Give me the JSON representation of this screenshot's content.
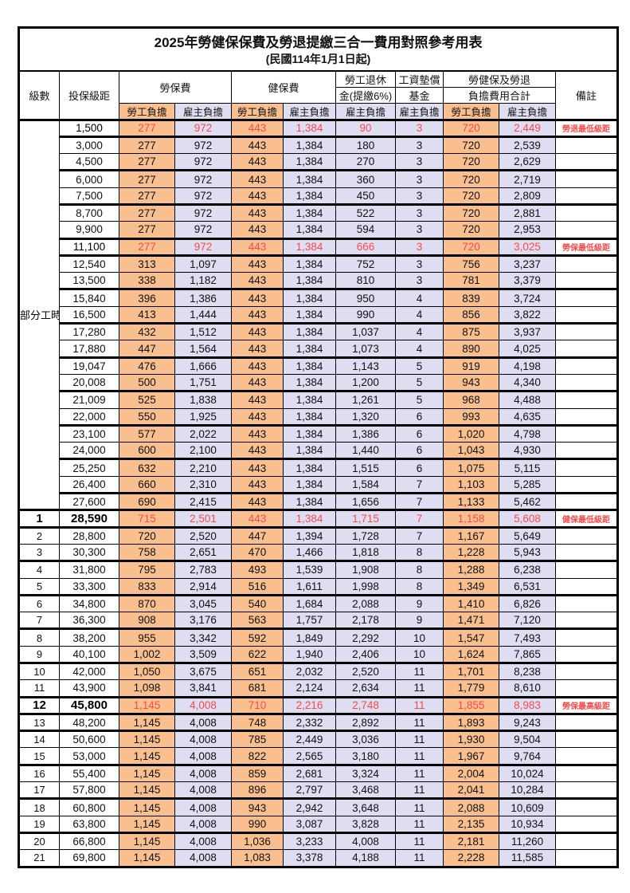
{
  "title": "2025年勞健保保費及勞退提繳三合一費用對照參考用表",
  "subtitle": "(民國114年1月1日起)",
  "header": {
    "level": "級數",
    "bracket": "投保級距",
    "labor": "勞保費",
    "health": "健保費",
    "pension_l1": "勞工退休",
    "pension_l2": "金(提繳6%)",
    "fund_l1": "工資墊償",
    "fund_l2": "基金",
    "total_l1": "勞健保及勞退",
    "total_l2": "負擔費用合計",
    "remark": "備註",
    "employee": "勞工負擔",
    "employer": "雇主負擔"
  },
  "part_time_label": "部分工時",
  "colors": {
    "employee_bg": "#FABF8F",
    "employer_bg": "#DEDDF2",
    "highlight_text": "#F94B4B"
  },
  "rows": [
    {
      "level": "",
      "bracket": "1,500",
      "values": [
        "277",
        "972",
        "443",
        "1,384",
        "90",
        "3",
        "720",
        "2,449"
      ],
      "remark": "勞退最低級距",
      "highlight": true
    },
    {
      "level": "",
      "bracket": "3,000",
      "values": [
        "277",
        "972",
        "443",
        "1,384",
        "180",
        "3",
        "720",
        "2,539"
      ],
      "remark": "",
      "highlight": false
    },
    {
      "level": "",
      "bracket": "4,500",
      "values": [
        "277",
        "972",
        "443",
        "1,384",
        "270",
        "3",
        "720",
        "2,629"
      ],
      "remark": "",
      "highlight": false
    },
    {
      "level": "",
      "bracket": "6,000",
      "values": [
        "277",
        "972",
        "443",
        "1,384",
        "360",
        "3",
        "720",
        "2,719"
      ],
      "remark": "",
      "highlight": false
    },
    {
      "level": "",
      "bracket": "7,500",
      "values": [
        "277",
        "972",
        "443",
        "1,384",
        "450",
        "3",
        "720",
        "2,809"
      ],
      "remark": "",
      "highlight": false
    },
    {
      "level": "",
      "bracket": "8,700",
      "values": [
        "277",
        "972",
        "443",
        "1,384",
        "522",
        "3",
        "720",
        "2,881"
      ],
      "remark": "",
      "highlight": false
    },
    {
      "level": "",
      "bracket": "9,900",
      "values": [
        "277",
        "972",
        "443",
        "1,384",
        "594",
        "3",
        "720",
        "2,953"
      ],
      "remark": "",
      "highlight": false
    },
    {
      "level": "",
      "bracket": "11,100",
      "values": [
        "277",
        "972",
        "443",
        "1,384",
        "666",
        "3",
        "720",
        "3,025"
      ],
      "remark": "勞保最低級距",
      "highlight": true
    },
    {
      "level": "",
      "bracket": "12,540",
      "values": [
        "313",
        "1,097",
        "443",
        "1,384",
        "752",
        "3",
        "756",
        "3,237"
      ],
      "remark": "",
      "highlight": false
    },
    {
      "level": "",
      "bracket": "13,500",
      "values": [
        "338",
        "1,182",
        "443",
        "1,384",
        "810",
        "3",
        "781",
        "3,379"
      ],
      "remark": "",
      "highlight": false
    },
    {
      "level": "",
      "bracket": "15,840",
      "values": [
        "396",
        "1,386",
        "443",
        "1,384",
        "950",
        "4",
        "839",
        "3,724"
      ],
      "remark": "",
      "highlight": false
    },
    {
      "level": "",
      "bracket": "16,500",
      "values": [
        "413",
        "1,444",
        "443",
        "1,384",
        "990",
        "4",
        "856",
        "3,822"
      ],
      "remark": "",
      "highlight": false
    },
    {
      "level": "",
      "bracket": "17,280",
      "values": [
        "432",
        "1,512",
        "443",
        "1,384",
        "1,037",
        "4",
        "875",
        "3,937"
      ],
      "remark": "",
      "highlight": false
    },
    {
      "level": "",
      "bracket": "17,880",
      "values": [
        "447",
        "1,564",
        "443",
        "1,384",
        "1,073",
        "4",
        "890",
        "4,025"
      ],
      "remark": "",
      "highlight": false
    },
    {
      "level": "",
      "bracket": "19,047",
      "values": [
        "476",
        "1,666",
        "443",
        "1,384",
        "1,143",
        "5",
        "919",
        "4,198"
      ],
      "remark": "",
      "highlight": false
    },
    {
      "level": "",
      "bracket": "20,008",
      "values": [
        "500",
        "1,751",
        "443",
        "1,384",
        "1,200",
        "5",
        "943",
        "4,340"
      ],
      "remark": "",
      "highlight": false
    },
    {
      "level": "",
      "bracket": "21,009",
      "values": [
        "525",
        "1,838",
        "443",
        "1,384",
        "1,261",
        "5",
        "968",
        "4,488"
      ],
      "remark": "",
      "highlight": false
    },
    {
      "level": "",
      "bracket": "22,000",
      "values": [
        "550",
        "1,925",
        "443",
        "1,384",
        "1,320",
        "6",
        "993",
        "4,635"
      ],
      "remark": "",
      "highlight": false
    },
    {
      "level": "",
      "bracket": "23,100",
      "values": [
        "577",
        "2,022",
        "443",
        "1,384",
        "1,386",
        "6",
        "1,020",
        "4,798"
      ],
      "remark": "",
      "highlight": false
    },
    {
      "level": "",
      "bracket": "24,000",
      "values": [
        "600",
        "2,100",
        "443",
        "1,384",
        "1,440",
        "6",
        "1,043",
        "4,930"
      ],
      "remark": "",
      "highlight": false
    },
    {
      "level": "",
      "bracket": "25,250",
      "values": [
        "632",
        "2,210",
        "443",
        "1,384",
        "1,515",
        "6",
        "1,075",
        "5,115"
      ],
      "remark": "",
      "highlight": false
    },
    {
      "level": "",
      "bracket": "26,400",
      "values": [
        "660",
        "2,310",
        "443",
        "1,384",
        "1,584",
        "7",
        "1,103",
        "5,285"
      ],
      "remark": "",
      "highlight": false
    },
    {
      "level": "",
      "bracket": "27,600",
      "values": [
        "690",
        "2,415",
        "443",
        "1,384",
        "1,656",
        "7",
        "1,133",
        "5,462"
      ],
      "remark": "",
      "highlight": false
    },
    {
      "level": "1",
      "bracket": "28,590",
      "values": [
        "715",
        "2,501",
        "443",
        "1,384",
        "1,715",
        "7",
        "1,158",
        "5,608"
      ],
      "remark": "健保最低級距",
      "highlight": true
    },
    {
      "level": "2",
      "bracket": "28,800",
      "values": [
        "720",
        "2,520",
        "447",
        "1,394",
        "1,728",
        "7",
        "1,167",
        "5,649"
      ],
      "remark": "",
      "highlight": false
    },
    {
      "level": "3",
      "bracket": "30,300",
      "values": [
        "758",
        "2,651",
        "470",
        "1,466",
        "1,818",
        "8",
        "1,228",
        "5,943"
      ],
      "remark": "",
      "highlight": false
    },
    {
      "level": "4",
      "bracket": "31,800",
      "values": [
        "795",
        "2,783",
        "493",
        "1,539",
        "1,908",
        "8",
        "1,288",
        "6,238"
      ],
      "remark": "",
      "highlight": false
    },
    {
      "level": "5",
      "bracket": "33,300",
      "values": [
        "833",
        "2,914",
        "516",
        "1,611",
        "1,998",
        "8",
        "1,349",
        "6,531"
      ],
      "remark": "",
      "highlight": false
    },
    {
      "level": "6",
      "bracket": "34,800",
      "values": [
        "870",
        "3,045",
        "540",
        "1,684",
        "2,088",
        "9",
        "1,410",
        "6,826"
      ],
      "remark": "",
      "highlight": false
    },
    {
      "level": "7",
      "bracket": "36,300",
      "values": [
        "908",
        "3,176",
        "563",
        "1,757",
        "2,178",
        "9",
        "1,471",
        "7,120"
      ],
      "remark": "",
      "highlight": false
    },
    {
      "level": "8",
      "bracket": "38,200",
      "values": [
        "955",
        "3,342",
        "592",
        "1,849",
        "2,292",
        "10",
        "1,547",
        "7,493"
      ],
      "remark": "",
      "highlight": false
    },
    {
      "level": "9",
      "bracket": "40,100",
      "values": [
        "1,002",
        "3,509",
        "622",
        "1,940",
        "2,406",
        "10",
        "1,624",
        "7,865"
      ],
      "remark": "",
      "highlight": false
    },
    {
      "level": "10",
      "bracket": "42,000",
      "values": [
        "1,050",
        "3,675",
        "651",
        "2,032",
        "2,520",
        "11",
        "1,701",
        "8,238"
      ],
      "remark": "",
      "highlight": false
    },
    {
      "level": "11",
      "bracket": "43,900",
      "values": [
        "1,098",
        "3,841",
        "681",
        "2,124",
        "2,634",
        "11",
        "1,779",
        "8,610"
      ],
      "remark": "",
      "highlight": false
    },
    {
      "level": "12",
      "bracket": "45,800",
      "values": [
        "1,145",
        "4,008",
        "710",
        "2,216",
        "2,748",
        "11",
        "1,855",
        "8,983"
      ],
      "remark": "勞保最高級距",
      "highlight": true
    },
    {
      "level": "13",
      "bracket": "48,200",
      "values": [
        "1,145",
        "4,008",
        "748",
        "2,332",
        "2,892",
        "11",
        "1,893",
        "9,243"
      ],
      "remark": "",
      "highlight": false
    },
    {
      "level": "14",
      "bracket": "50,600",
      "values": [
        "1,145",
        "4,008",
        "785",
        "2,449",
        "3,036",
        "11",
        "1,930",
        "9,504"
      ],
      "remark": "",
      "highlight": false
    },
    {
      "level": "15",
      "bracket": "53,000",
      "values": [
        "1,145",
        "4,008",
        "822",
        "2,565",
        "3,180",
        "11",
        "1,967",
        "9,764"
      ],
      "remark": "",
      "highlight": false
    },
    {
      "level": "16",
      "bracket": "55,400",
      "values": [
        "1,145",
        "4,008",
        "859",
        "2,681",
        "3,324",
        "11",
        "2,004",
        "10,024"
      ],
      "remark": "",
      "highlight": false
    },
    {
      "level": "17",
      "bracket": "57,800",
      "values": [
        "1,145",
        "4,008",
        "896",
        "2,797",
        "3,468",
        "11",
        "2,041",
        "10,284"
      ],
      "remark": "",
      "highlight": false
    },
    {
      "level": "18",
      "bracket": "60,800",
      "values": [
        "1,145",
        "4,008",
        "943",
        "2,942",
        "3,648",
        "11",
        "2,088",
        "10,609"
      ],
      "remark": "",
      "highlight": false
    },
    {
      "level": "19",
      "bracket": "63,800",
      "values": [
        "1,145",
        "4,008",
        "990",
        "3,087",
        "3,828",
        "11",
        "2,135",
        "10,934"
      ],
      "remark": "",
      "highlight": false
    },
    {
      "level": "20",
      "bracket": "66,800",
      "values": [
        "1,145",
        "4,008",
        "1,036",
        "3,233",
        "4,008",
        "11",
        "2,181",
        "11,260"
      ],
      "remark": "",
      "highlight": false
    },
    {
      "level": "21",
      "bracket": "69,800",
      "values": [
        "1,145",
        "4,008",
        "1,083",
        "3,378",
        "4,188",
        "11",
        "2,228",
        "11,585"
      ],
      "remark": "",
      "highlight": false
    }
  ]
}
